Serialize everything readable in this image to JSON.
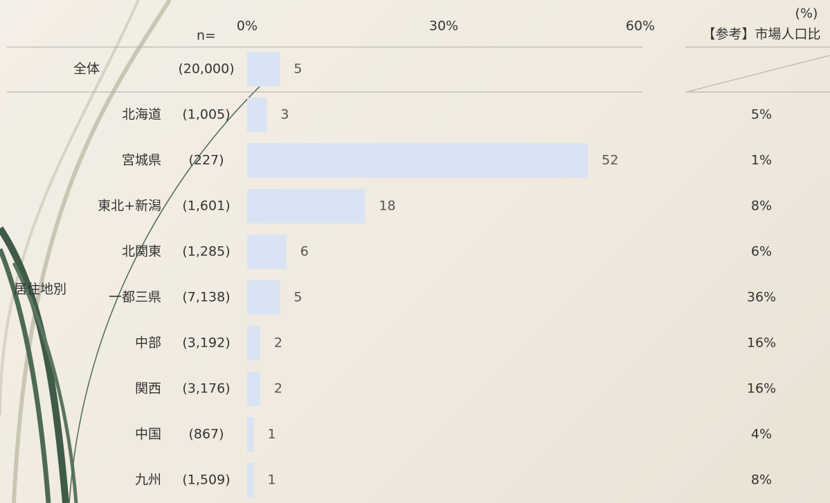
{
  "chart_data": {
    "type": "bar",
    "orientation": "horizontal",
    "n_label": "n=",
    "unit": "(%)",
    "reference_header": "【参考】市場人口比",
    "group_label": "居住地別",
    "categories": [
      "全体",
      "北海道",
      "宮城県",
      "東北+新潟",
      "北関東",
      "一都三県",
      "中部",
      "関西",
      "中国",
      "九州"
    ],
    "n": [
      "(20,000)",
      "(1,005)",
      "(227)",
      "(1,601)",
      "(1,285)",
      "(7,138)",
      "(3,192)",
      "(3,176)",
      "(867)",
      "(1,509)"
    ],
    "values": [
      5,
      3,
      52,
      18,
      6,
      5,
      2,
      2,
      1,
      1
    ],
    "reference": [
      "5%",
      "1%",
      "8%",
      "6%",
      "36%",
      "16%",
      "16%",
      "4%",
      "8%"
    ],
    "color": "#dae3f3",
    "xlim": [
      0,
      60
    ],
    "xticks": [
      {
        "value": 0,
        "label": "0%"
      },
      {
        "value": 30,
        "label": "30%"
      },
      {
        "value": 60,
        "label": "60%"
      }
    ]
  }
}
